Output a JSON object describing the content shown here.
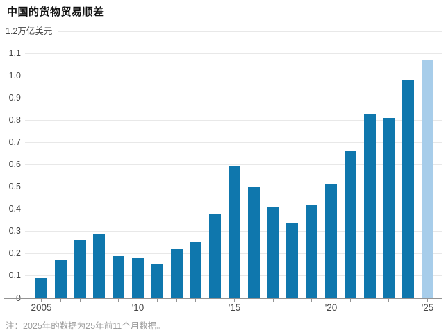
{
  "title": "中国的货物贸易顺差",
  "footnote": "注：2025年的数据为25年前11个月数据。",
  "chart_data": {
    "type": "bar",
    "title": "中国的货物贸易顺差",
    "unit_label": "万亿美元",
    "categories": [
      2005,
      2006,
      2007,
      2008,
      2009,
      2010,
      2011,
      2012,
      2013,
      2014,
      2015,
      2016,
      2017,
      2018,
      2019,
      2020,
      2021,
      2022,
      2023,
      2024,
      2025
    ],
    "values": [
      0.09,
      0.17,
      0.26,
      0.29,
      0.19,
      0.18,
      0.15,
      0.22,
      0.25,
      0.38,
      0.59,
      0.5,
      0.41,
      0.34,
      0.42,
      0.51,
      0.66,
      0.83,
      0.81,
      0.98,
      1.07
    ],
    "ylim": [
      0,
      1.2
    ],
    "ytick_step": 0.1,
    "ytick_labels": [
      "0",
      "0.1",
      "0.2",
      "0.3",
      "0.4",
      "0.5",
      "0.6",
      "0.7",
      "0.8",
      "0.9",
      "1.0",
      "1.1",
      "1.2万亿美元"
    ],
    "xtick_labels": [
      {
        "year": 2005,
        "label": "2005"
      },
      {
        "year": 2010,
        "label": "'10"
      },
      {
        "year": 2015,
        "label": "'15"
      },
      {
        "year": 2020,
        "label": "'20"
      },
      {
        "year": 2025,
        "label": "'25"
      }
    ],
    "highlight_year": 2025,
    "grid": true,
    "legend": false,
    "colors": {
      "bar": "#0f77ad",
      "highlight": "#a7cdea",
      "gridline": "#e8e8e8",
      "axis_line": "#939393",
      "tick": "#939393",
      "axis_text": "#454545",
      "title_text": "#111111",
      "footnote_text": "#9b9b9b"
    }
  }
}
